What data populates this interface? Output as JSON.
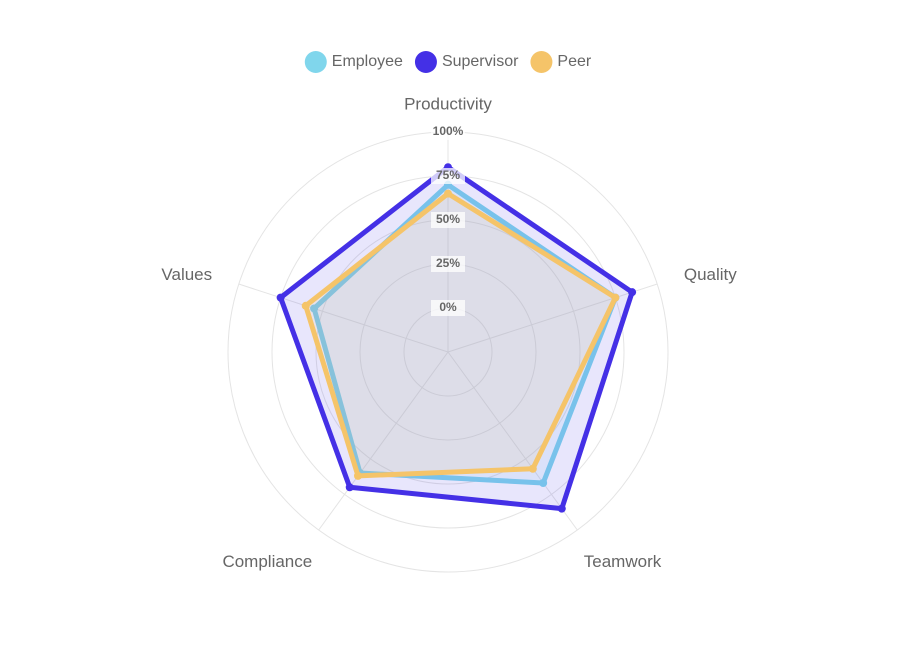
{
  "chart_data": {
    "type": "radar",
    "categories": [
      "Productivity",
      "Quality",
      "Teamwork",
      "Compliance",
      "Values"
    ],
    "rlim": [
      -25,
      100
    ],
    "rticks": [
      {
        "value": 0,
        "label": "0%"
      },
      {
        "value": 25,
        "label": "25%"
      },
      {
        "value": 50,
        "label": "50%"
      },
      {
        "value": 75,
        "label": "75%"
      },
      {
        "value": 100,
        "label": "100%"
      }
    ],
    "grid": true,
    "legend": "top",
    "series": [
      {
        "name": "Employee",
        "color": "#80d6ec",
        "values": [
          70,
          75,
          67,
          60,
          55
        ]
      },
      {
        "name": "Supervisor",
        "color": "#4430e6",
        "values": [
          80,
          85,
          85,
          70,
          75
        ]
      },
      {
        "name": "Peer",
        "color": "#f5c469",
        "values": [
          65,
          75,
          57,
          62,
          60
        ]
      }
    ]
  }
}
